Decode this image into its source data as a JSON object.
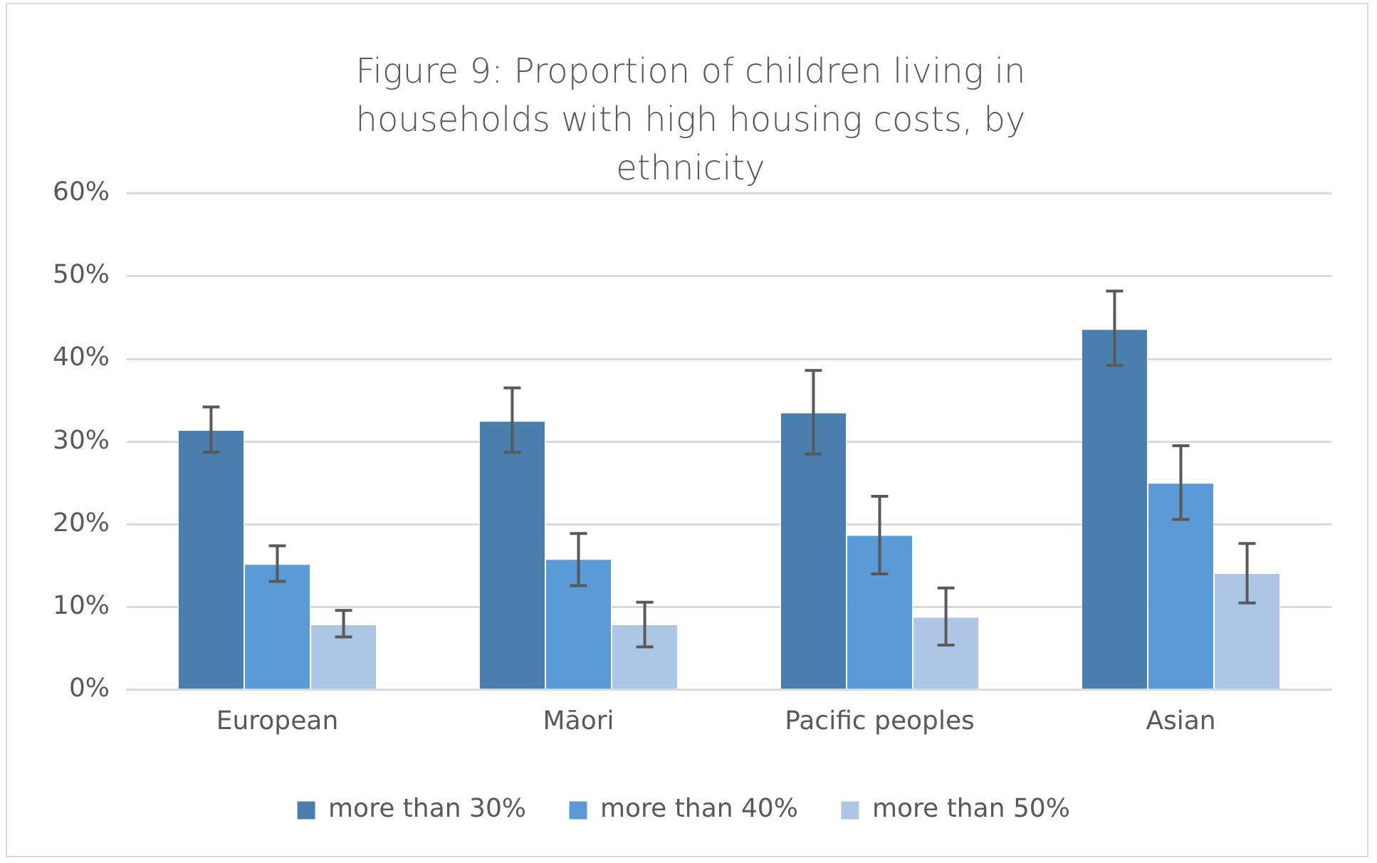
{
  "chart_data": {
    "type": "bar",
    "title": "Figure 9: Proportion of children living in households with high housing costs, by ethnicity",
    "categories": [
      "European",
      "Māori",
      "Pacific peoples",
      "Asian"
    ],
    "series": [
      {
        "name": "more than 30%",
        "color": "#4a7ead",
        "values": [
          31.4,
          32.5,
          33.5,
          43.6
        ],
        "errors": [
          [
            28.7,
            34.2
          ],
          [
            28.7,
            36.5
          ],
          [
            28.5,
            38.6
          ],
          [
            39.2,
            48.2
          ]
        ]
      },
      {
        "name": "more than 40%",
        "color": "#5b9bd5",
        "values": [
          15.2,
          15.8,
          18.7,
          25.0
        ],
        "errors": [
          [
            13.1,
            17.4
          ],
          [
            12.6,
            18.9
          ],
          [
            14.0,
            23.4
          ],
          [
            20.6,
            29.5
          ]
        ]
      },
      {
        "name": "more than 50%",
        "color": "#aec6e6",
        "values": [
          7.9,
          7.9,
          8.8,
          14.1
        ],
        "errors": [
          [
            6.4,
            9.6
          ],
          [
            5.2,
            10.6
          ],
          [
            5.4,
            12.3
          ],
          [
            10.5,
            17.7
          ]
        ]
      }
    ],
    "ylim": [
      0,
      60
    ],
    "yticks": [
      {
        "value": 0,
        "label": "0%"
      },
      {
        "value": 10,
        "label": "10%"
      },
      {
        "value": 20,
        "label": "20%"
      },
      {
        "value": 30,
        "label": "30%"
      },
      {
        "value": 40,
        "label": "40%"
      },
      {
        "value": 50,
        "label": "50%"
      },
      {
        "value": 60,
        "label": "60%"
      }
    ],
    "grid": "y",
    "legend": "bottom"
  }
}
